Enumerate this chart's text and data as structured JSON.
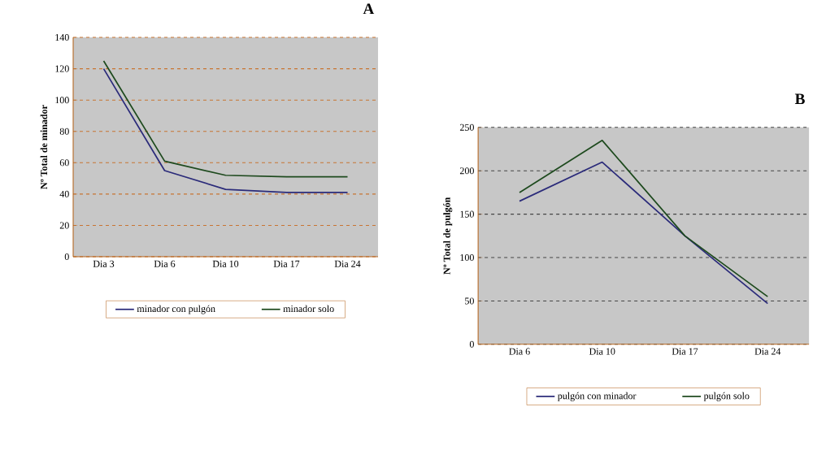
{
  "chart_data": [
    {
      "type": "line",
      "title": "A",
      "ylabel": "Nº Total de minador",
      "categories": [
        "Dia 3",
        "Dia 6",
        "Dia 10",
        "Dia 17",
        "Dia 24"
      ],
      "ylim": [
        0,
        140
      ],
      "yticks": [
        0,
        20,
        40,
        60,
        80,
        100,
        120,
        140
      ],
      "grid": "y",
      "legend": "bottom",
      "series": [
        {
          "name": "minador con pulgón",
          "color": "#2b2b7a",
          "values": [
            120,
            55,
            43,
            41,
            41
          ]
        },
        {
          "name": "minador solo",
          "color": "#1e4a1e",
          "values": [
            125,
            61,
            52,
            51,
            51
          ]
        }
      ]
    },
    {
      "type": "line",
      "title": "B",
      "ylabel": "Nº Total de pulgón",
      "categories": [
        "Dia 6",
        "Dia 10",
        "Dia 17",
        "Dia 24"
      ],
      "ylim": [
        0,
        250
      ],
      "yticks": [
        0,
        50,
        100,
        150,
        200,
        250
      ],
      "grid": "y",
      "legend": "bottom",
      "series": [
        {
          "name": "pulgón con minador",
          "color": "#2b2b7a",
          "values": [
            165,
            210,
            125,
            47
          ]
        },
        {
          "name": "pulgón solo",
          "color": "#1e4a1e",
          "values": [
            175,
            235,
            125,
            55
          ]
        }
      ]
    }
  ]
}
